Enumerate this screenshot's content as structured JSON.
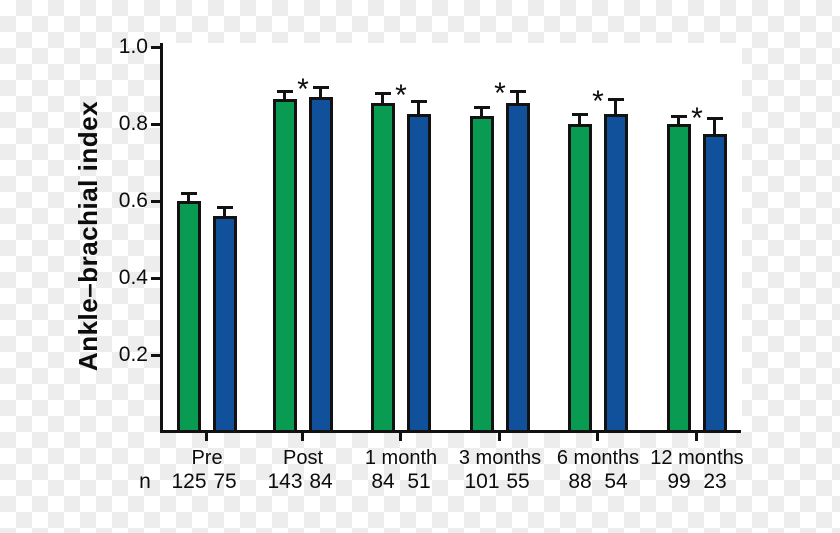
{
  "figure": {
    "n_row_label": "n"
  },
  "chart_data": {
    "type": "bar",
    "title": "",
    "xlabel": "",
    "ylabel": "Ankle–brachial index",
    "ylim": [
      0,
      1.0
    ],
    "yticks": [
      1.0,
      0.8,
      0.6,
      0.4,
      0.2
    ],
    "grid": false,
    "legend": "none",
    "categories": [
      "Pre",
      "Post",
      "1 month",
      "3 months",
      "6 months",
      "12 months"
    ],
    "series": [
      {
        "name": "green-series",
        "color": "#0a9b52",
        "values": [
          0.6,
          0.865,
          0.855,
          0.82,
          0.8,
          0.8
        ],
        "errors": [
          0.02,
          0.02,
          0.025,
          0.025,
          0.025,
          0.02
        ],
        "n": [
          "125",
          "143",
          "84",
          "101",
          "88",
          "99"
        ]
      },
      {
        "name": "blue-series",
        "color": "#11519c",
        "values": [
          0.56,
          0.87,
          0.825,
          0.855,
          0.825,
          0.775
        ],
        "errors": [
          0.025,
          0.025,
          0.035,
          0.03,
          0.04,
          0.04
        ],
        "n": [
          "75",
          "84",
          "51",
          "55",
          "54",
          "23"
        ]
      }
    ],
    "significance": [
      false,
      true,
      true,
      true,
      true,
      true
    ],
    "significance_symbol": "*"
  }
}
